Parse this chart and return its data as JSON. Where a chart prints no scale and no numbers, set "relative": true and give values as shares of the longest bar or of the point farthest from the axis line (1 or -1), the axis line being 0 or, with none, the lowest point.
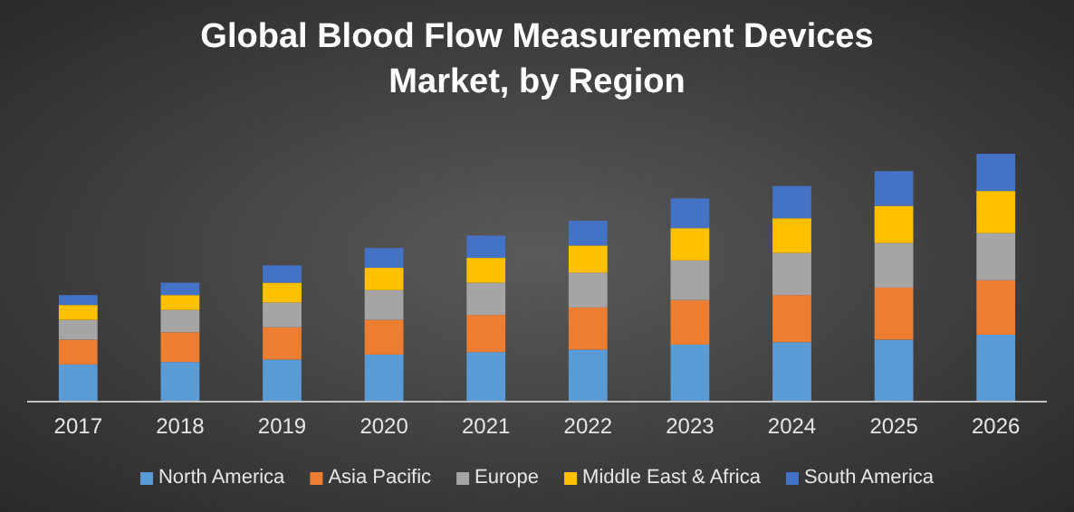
{
  "chart_data": {
    "type": "bar",
    "title": "Global Blood Flow Measurement Devices Market, by Region",
    "categories": [
      "2017",
      "2018",
      "2019",
      "2020",
      "2021",
      "2022",
      "2023",
      "2024",
      "2025",
      "2026"
    ],
    "stacked": true,
    "relative": true,
    "legend": "bottom",
    "grid": false,
    "series": [
      {
        "name": "North America",
        "color": "#5b9bd5",
        "values": [
          0.15,
          0.16,
          0.17,
          0.19,
          0.2,
          0.21,
          0.23,
          0.24,
          0.25,
          0.27
        ]
      },
      {
        "name": "Asia Pacific",
        "color": "#ed7d31",
        "values": [
          0.1,
          0.12,
          0.13,
          0.14,
          0.15,
          0.17,
          0.18,
          0.19,
          0.21,
          0.22
        ]
      },
      {
        "name": "Europe",
        "color": "#a5a5a5",
        "values": [
          0.08,
          0.09,
          0.1,
          0.12,
          0.13,
          0.14,
          0.16,
          0.17,
          0.18,
          0.19
        ]
      },
      {
        "name": "Middle East & Africa",
        "color": "#ffc000",
        "values": [
          0.06,
          0.06,
          0.08,
          0.09,
          0.1,
          0.11,
          0.13,
          0.14,
          0.15,
          0.17
        ]
      },
      {
        "name": "South America",
        "color": "#4472c4",
        "values": [
          0.04,
          0.05,
          0.07,
          0.08,
          0.09,
          0.1,
          0.12,
          0.13,
          0.14,
          0.15
        ]
      }
    ]
  }
}
